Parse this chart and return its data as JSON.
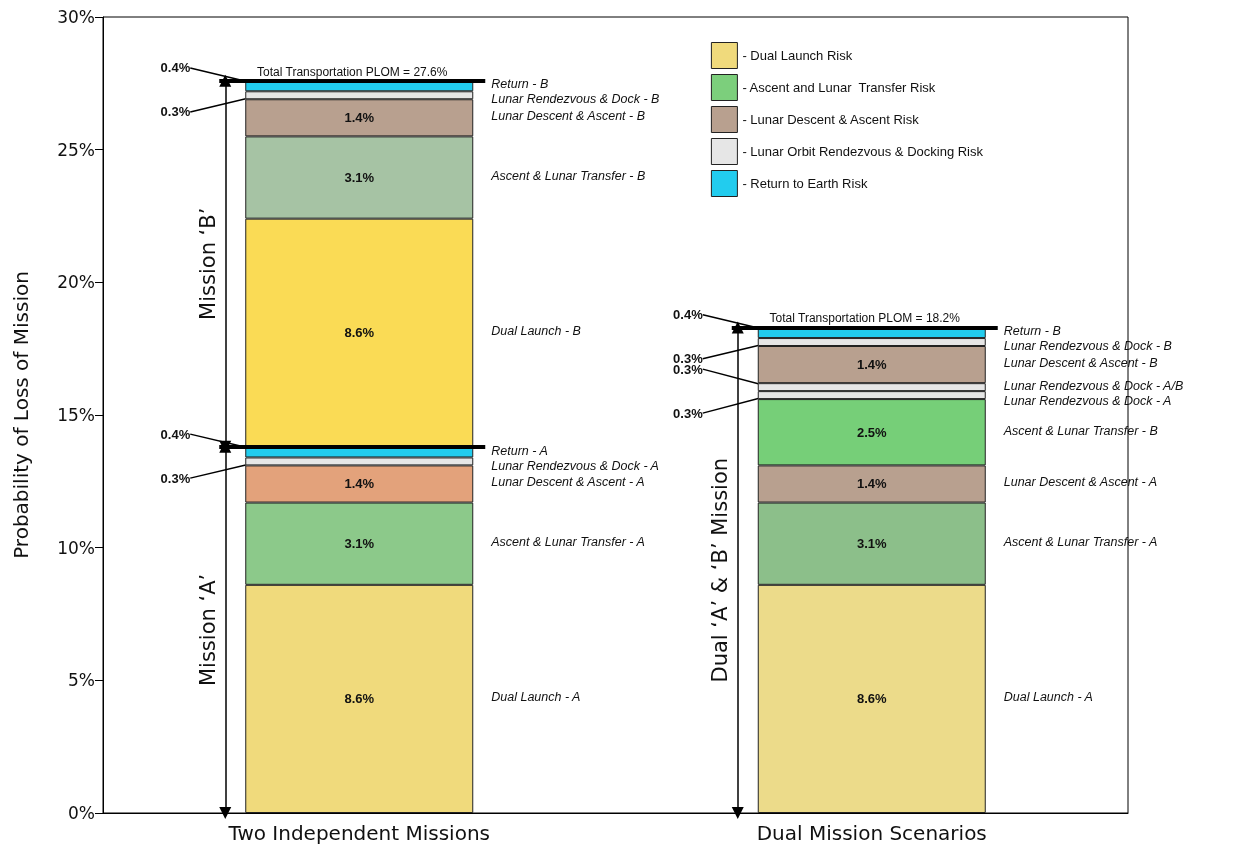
{
  "chart_data": {
    "type": "bar",
    "stacked": true,
    "categories": [
      "Two Independent Missions",
      "Dual Mission Scenarios"
    ],
    "ylabel": "Probability of Loss of Mission",
    "ylim": [
      0,
      30
    ],
    "yticks": [
      {
        "value": 0,
        "label": "0%"
      },
      {
        "value": 5,
        "label": "5%"
      },
      {
        "value": 10,
        "label": "10%"
      },
      {
        "value": 15,
        "label": "15%"
      },
      {
        "value": 20,
        "label": "20%"
      },
      {
        "value": 25,
        "label": "25%"
      },
      {
        "value": 30,
        "label": "30%"
      }
    ],
    "legend": "top right",
    "series": [
      {
        "name": "- Dual Launch Risk",
        "color": "#f0da7c",
        "colors": [
          "#f0da7c",
          "#ecdb8a"
        ],
        "values": [
          8.6,
          8.6
        ],
        "value_labels": [
          "8.6%",
          "8.6%"
        ]
      },
      {
        "name": "- Ascent and Lunar  Transfer Risk",
        "color": "#7ccf7c",
        "colors": [
          "#8cc98a",
          "#8cbf8a"
        ],
        "values": [
          3.1,
          3.1
        ],
        "value_labels": [
          "3.1%",
          "3.1%"
        ]
      },
      {
        "name": "- Lunar Descent & Ascent Risk",
        "color": "#b8a08f",
        "colors": [
          "#e3a27b",
          "#b8a08f"
        ],
        "values": [
          1.4,
          1.4
        ],
        "value_labels": [
          "1.4%",
          "1.4%"
        ]
      },
      {
        "color": "#76cf78",
        "values": [
          null,
          2.5
        ],
        "value_labels": [
          null,
          "2.5%"
        ]
      },
      {
        "name": "- Lunar Orbit Rendezvous & Docking Risk",
        "color": "#e6e6e6",
        "values": [
          0.3,
          0.3
        ],
        "value_labels": [
          "0.3%",
          "0.3%"
        ]
      },
      {
        "color": "#e6e6e6",
        "values": [
          null,
          0.3
        ],
        "value_labels": [
          null,
          "0.3%"
        ]
      },
      {
        "name": "- Return to Earth Risk",
        "color": "#22ccee",
        "values": [
          0.4,
          null
        ],
        "value_labels": [
          "0.4%",
          null
        ]
      },
      {
        "color": "#fadb55",
        "values": [
          8.6,
          null
        ],
        "value_labels": [
          "8.6%",
          null
        ]
      },
      {
        "color": "#a6c3a4",
        "values": [
          3.1,
          null
        ],
        "value_labels": [
          "3.1%",
          null
        ]
      },
      {
        "color": "#b8a08f",
        "values": [
          1.4,
          1.4
        ],
        "value_labels": [
          "1.4%",
          "1.4%"
        ]
      },
      {
        "color": "#e6e6e6",
        "values": [
          0.3,
          0.3
        ],
        "value_labels": [
          "0.3%",
          "0.3%"
        ]
      },
      {
        "color": "#22ccee",
        "values": [
          0.4,
          0.4
        ],
        "value_labels": [
          "0.4%",
          "0.4%"
        ]
      }
    ],
    "totals": [
      "Total Transportation PLOM = 27.6%",
      "Total Transportation PLOM = 18.2%"
    ],
    "ref_lines": [
      {
        "axis": "y",
        "value": 13.8,
        "color": "#000000"
      }
    ],
    "annotations": [
      "Return - B",
      "Lunar Rendezvous & Dock - B",
      "Lunar Descent & Ascent - B",
      "Ascent & Lunar Transfer - B",
      "Dual Launch - B",
      "Return - A",
      "Lunar Rendezvous & Dock - A",
      "Lunar Descent & Ascent - A",
      "Ascent & Lunar Transfer - A",
      "Dual Launch - A",
      "Return - B",
      "Lunar Rendezvous & Dock - B",
      "Lunar Descent & Ascent - B",
      "Lunar Rendezvous & Dock - A/B",
      "Lunar Rendezvous & Dock - A",
      "Ascent & Lunar Transfer - B",
      "Lunar Descent & Ascent - A",
      "Ascent & Lunar Transfer - A",
      "Dual Launch - A",
      "Mission ‘A’",
      "Mission ‘B’",
      "Dual ‘A’ & ‘B’ Mission"
    ]
  }
}
